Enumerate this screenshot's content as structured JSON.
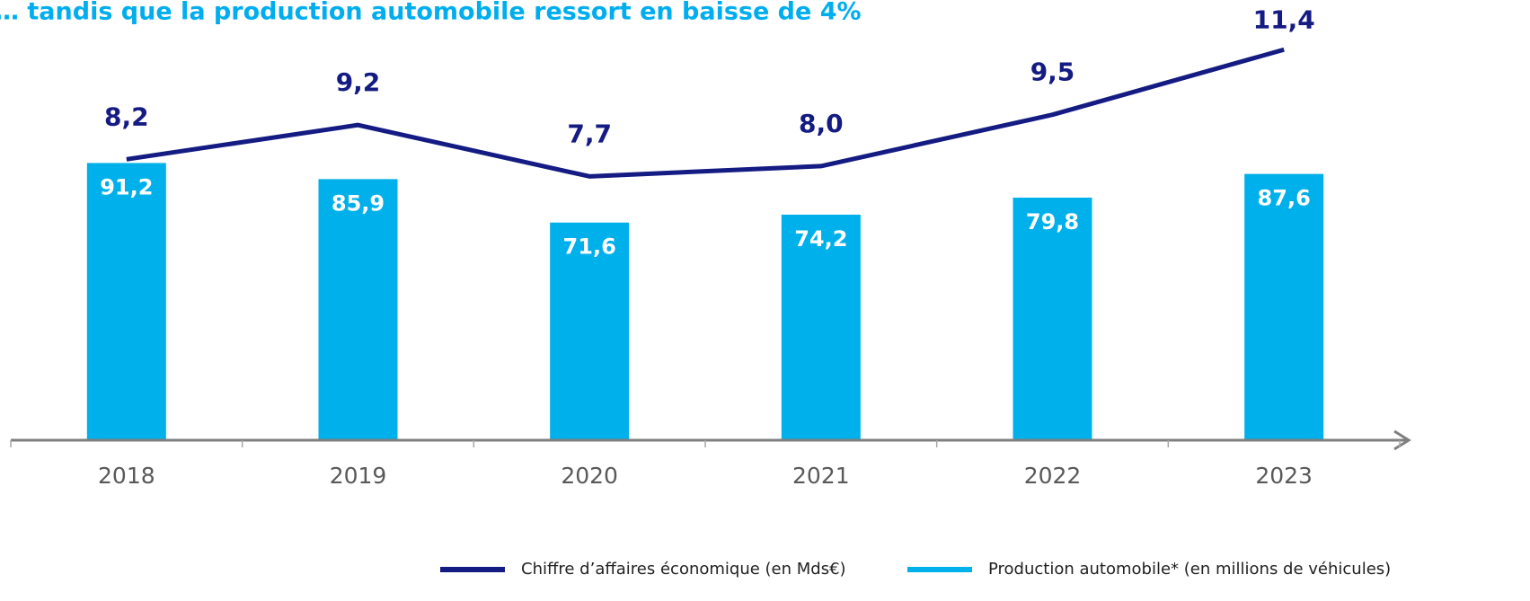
{
  "chart_data": {
    "type": "bar",
    "title": "… tandis que la production automobile ressort en baisse de 4%",
    "categories": [
      "2018",
      "2019",
      "2020",
      "2021",
      "2022",
      "2023"
    ],
    "series": [
      {
        "name": "Production automobile* (en millions de véhicules)",
        "type": "bar",
        "axis": "y",
        "color": "#00b0ea",
        "values": [
          91.2,
          85.9,
          71.6,
          74.2,
          79.8,
          87.6
        ],
        "value_labels": [
          "91,2",
          "85,9",
          "71,6",
          "74,2",
          "79,8",
          "87,6"
        ]
      },
      {
        "name": "Chiffre d’affaires économique (en Mds€)",
        "type": "line",
        "axis": "y2",
        "color": "#141b82",
        "values": [
          8.2,
          9.2,
          7.7,
          8.0,
          9.5,
          11.4
        ],
        "value_labels": [
          "8,2",
          "9,2",
          "7,7",
          "8,0",
          "9,5",
          "11,4"
        ]
      }
    ],
    "ylim": [
      0,
      133
    ],
    "y2lim": [
      0,
      11.8
    ],
    "grid": false,
    "legend": "bottom-right"
  }
}
